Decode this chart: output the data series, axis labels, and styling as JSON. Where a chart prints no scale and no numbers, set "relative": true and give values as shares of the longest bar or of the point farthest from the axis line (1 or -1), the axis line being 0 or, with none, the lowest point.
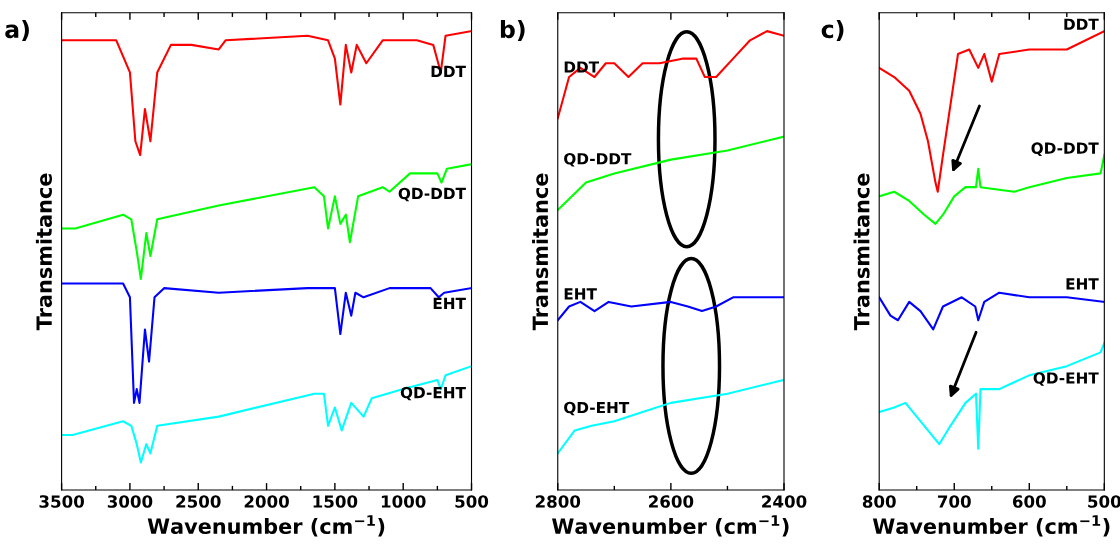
{
  "chart_data": [
    {
      "type": "line",
      "title": "a)",
      "xlabel": "Wavenumber (cm$^{−1}$)",
      "ylabel": "Transmitance",
      "relative": true,
      "legend": false,
      "grid": false,
      "xlim": [
        3500,
        500
      ],
      "xticks": [
        3500,
        {
          "value": 3250,
          "label": null
        },
        3000,
        {
          "value": 2750,
          "label": null
        },
        2500,
        {
          "value": 2250,
          "label": null
        },
        2000,
        {
          "value": 1750,
          "label": null
        },
        1500,
        {
          "value": 1250,
          "label": null
        },
        1000,
        {
          "value": 750,
          "label": null
        },
        500
      ],
      "series": [
        {
          "name": "DDT",
          "color": "#ff0000",
          "x": [
            3500,
            3100,
            3000,
            2960,
            2925,
            2890,
            2850,
            2800,
            2700,
            2550,
            2350,
            2300,
            1700,
            1550,
            1500,
            1460,
            1420,
            1380,
            1340,
            1270,
            1150,
            900,
            780,
            725,
            690,
            500
          ],
          "values": [
            0.98,
            0.98,
            0.91,
            0.76,
            0.73,
            0.83,
            0.76,
            0.91,
            0.97,
            0.97,
            0.96,
            0.98,
            0.99,
            0.98,
            0.94,
            0.84,
            0.97,
            0.91,
            0.97,
            0.93,
            0.98,
            0.98,
            0.97,
            0.91,
            0.99,
            1.0
          ]
        },
        {
          "name": "QD-DDT",
          "color": "#00ff00",
          "x": [
            3500,
            3400,
            3050,
            2990,
            2950,
            2920,
            2880,
            2850,
            2800,
            2350,
            1650,
            1580,
            1550,
            1500,
            1460,
            1420,
            1390,
            1330,
            1150,
            1100,
            950,
            750,
            720,
            680,
            500
          ],
          "values": [
            0.57,
            0.57,
            0.6,
            0.59,
            0.52,
            0.46,
            0.56,
            0.51,
            0.59,
            0.62,
            0.66,
            0.64,
            0.57,
            0.64,
            0.58,
            0.6,
            0.54,
            0.64,
            0.66,
            0.65,
            0.69,
            0.69,
            0.67,
            0.7,
            0.71
          ]
        },
        {
          "name": "EHT",
          "color": "#0000ff",
          "x": [
            3500,
            3050,
            3000,
            2970,
            2950,
            2930,
            2890,
            2860,
            2820,
            2750,
            2350,
            1700,
            1500,
            1460,
            1420,
            1380,
            1350,
            1290,
            1100,
            800,
            740,
            700,
            500
          ],
          "values": [
            0.45,
            0.45,
            0.42,
            0.19,
            0.22,
            0.19,
            0.35,
            0.28,
            0.42,
            0.44,
            0.43,
            0.44,
            0.44,
            0.34,
            0.43,
            0.38,
            0.43,
            0.42,
            0.44,
            0.44,
            0.42,
            0.43,
            0.44
          ]
        },
        {
          "name": "QD-EHT",
          "color": "#00ffff",
          "x": [
            3500,
            3420,
            3050,
            2990,
            2950,
            2920,
            2880,
            2850,
            2800,
            2350,
            1650,
            1580,
            1550,
            1500,
            1450,
            1380,
            1290,
            1230,
            1000,
            750,
            725,
            690,
            500
          ],
          "values": [
            0.12,
            0.12,
            0.15,
            0.14,
            0.1,
            0.06,
            0.1,
            0.08,
            0.14,
            0.16,
            0.21,
            0.21,
            0.14,
            0.18,
            0.13,
            0.19,
            0.16,
            0.2,
            0.22,
            0.24,
            0.22,
            0.25,
            0.27
          ]
        }
      ]
    },
    {
      "type": "line",
      "title": "b)",
      "xlabel": "Wavenumber (cm$^{−1}$)",
      "ylabel": "Transmitance",
      "relative": true,
      "legend": false,
      "grid": false,
      "xlim": [
        2800,
        2400
      ],
      "xticks": [
        2800,
        {
          "value": 2700,
          "label": null
        },
        2600,
        {
          "value": 2500,
          "label": null
        },
        2400
      ],
      "series": [
        {
          "name": "DDT",
          "color": "#ff0000",
          "x": [
            2800,
            2780,
            2760,
            2735,
            2715,
            2700,
            2675,
            2650,
            2620,
            2580,
            2555,
            2540,
            2520,
            2490,
            2460,
            2430,
            2400
          ],
          "values": [
            0.81,
            0.9,
            0.92,
            0.9,
            0.93,
            0.93,
            0.9,
            0.93,
            0.93,
            0.94,
            0.94,
            0.9,
            0.9,
            0.94,
            0.98,
            1.0,
            0.99
          ]
        },
        {
          "name": "QD-DDT",
          "color": "#00ff00",
          "x": [
            2800,
            2750,
            2700,
            2600,
            2500,
            2400
          ],
          "values": [
            0.61,
            0.67,
            0.69,
            0.72,
            0.74,
            0.77
          ]
        },
        {
          "name": "EHT",
          "color": "#0000ff",
          "x": [
            2800,
            2780,
            2760,
            2735,
            2710,
            2670,
            2600,
            2570,
            2545,
            2520,
            2490,
            2440,
            2400
          ],
          "values": [
            0.37,
            0.4,
            0.41,
            0.39,
            0.41,
            0.4,
            0.41,
            0.4,
            0.39,
            0.4,
            0.42,
            0.42,
            0.42
          ]
        },
        {
          "name": "QD-EHT",
          "color": "#00ffff",
          "x": [
            2800,
            2770,
            2740,
            2700,
            2650,
            2600,
            2500,
            2400
          ],
          "values": [
            0.08,
            0.13,
            0.14,
            0.15,
            0.17,
            0.19,
            0.21,
            0.24
          ]
        }
      ]
    },
    {
      "type": "line",
      "title": "c)",
      "xlabel": "Wavenumber (cm$^{−1}$)",
      "ylabel": "Transmitance",
      "relative": true,
      "legend": false,
      "grid": false,
      "xlim": [
        800,
        500
      ],
      "xticks": [
        800,
        {
          "value": 750,
          "label": null
        },
        700,
        {
          "value": 650,
          "label": null
        },
        600,
        {
          "value": 550,
          "label": null
        },
        500
      ],
      "series": [
        {
          "name": "DDT",
          "color": "#ff0000",
          "x": [
            800,
            780,
            760,
            745,
            735,
            725,
            722,
            715,
            705,
            695,
            680,
            668,
            660,
            650,
            640,
            600,
            550,
            500
          ],
          "values": [
            0.92,
            0.9,
            0.87,
            0.82,
            0.76,
            0.67,
            0.65,
            0.73,
            0.84,
            0.95,
            0.96,
            0.92,
            0.95,
            0.89,
            0.95,
            0.96,
            0.96,
            1.0
          ]
        },
        {
          "name": "QD-DDT",
          "color": "#00ff00",
          "x": [
            800,
            780,
            760,
            740,
            725,
            715,
            700,
            685,
            671,
            668,
            665,
            620,
            600,
            550,
            505,
            500
          ],
          "values": [
            0.64,
            0.65,
            0.63,
            0.6,
            0.58,
            0.6,
            0.64,
            0.66,
            0.66,
            0.7,
            0.66,
            0.65,
            0.66,
            0.68,
            0.69,
            0.73
          ]
        },
        {
          "name": "EHT",
          "color": "#0000ff",
          "x": [
            800,
            785,
            775,
            760,
            745,
            728,
            715,
            690,
            672,
            668,
            660,
            640,
            600,
            550,
            500
          ],
          "values": [
            0.42,
            0.38,
            0.37,
            0.41,
            0.39,
            0.35,
            0.4,
            0.42,
            0.4,
            0.37,
            0.41,
            0.43,
            0.42,
            0.42,
            0.41
          ]
        },
        {
          "name": "QD-EHT",
          "color": "#00ffff",
          "x": [
            800,
            780,
            765,
            750,
            735,
            720,
            705,
            685,
            671,
            668,
            665,
            640,
            600,
            550,
            505,
            500
          ],
          "values": [
            0.17,
            0.18,
            0.19,
            0.16,
            0.13,
            0.1,
            0.14,
            0.19,
            0.21,
            0.09,
            0.22,
            0.22,
            0.25,
            0.27,
            0.3,
            0.32
          ]
        }
      ]
    }
  ]
}
